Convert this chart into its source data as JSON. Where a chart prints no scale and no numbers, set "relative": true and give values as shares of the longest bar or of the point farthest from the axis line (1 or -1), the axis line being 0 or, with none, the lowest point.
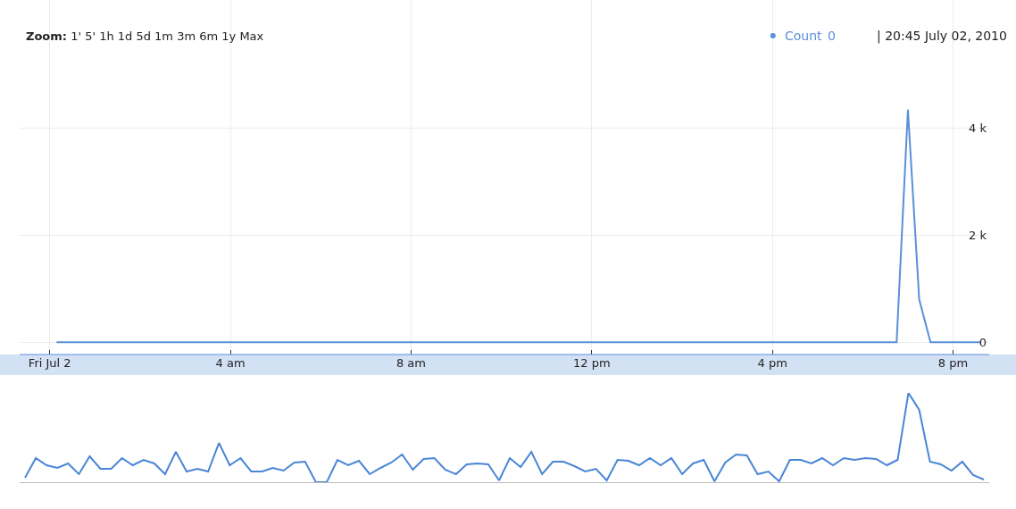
{
  "chart_data": [
    {
      "type": "line",
      "annotations": [
        "Zoom: 1' 5' 1h 1d 5d 1m 3m 6m 1y Max",
        "0",
        "| 20:45 July 02, 2010"
      ],
      "x": [
        "2010-07-02T00:09",
        "2010-07-02T18:45",
        "2010-07-02T19:00",
        "2010-07-02T19:15",
        "2010-07-02T19:30",
        "2010-07-02T20:36"
      ],
      "series": [
        {
          "name": "Count",
          "color": "#5b8fd9",
          "values": [
            0,
            0,
            4350,
            800,
            0,
            0
          ]
        }
      ],
      "xlim": [
        "2010-07-01T23:20",
        "2010-07-02T20:48"
      ],
      "xticks": [
        {
          "value": "2010-07-02T00:00",
          "label": "Fri Jul 2"
        },
        {
          "value": "2010-07-02T04:00",
          "label": "4 am"
        },
        {
          "value": "2010-07-02T08:00",
          "label": "8 am"
        },
        {
          "value": "2010-07-02T12:00",
          "label": "12 pm"
        },
        {
          "value": "2010-07-02T16:00",
          "label": "4 pm"
        },
        {
          "value": "2010-07-02T20:00",
          "label": "8 pm"
        }
      ],
      "ylim": [
        -230,
        6400
      ],
      "yticks": [
        0,
        {
          "value": 2000,
          "label": "2 k"
        },
        {
          "value": 4000,
          "label": "4 k"
        }
      ],
      "grid": true
    },
    {
      "type": "line",
      "relative": true,
      "categories": [
        null,
        null,
        null,
        null,
        null,
        null,
        null,
        null,
        null,
        null,
        null,
        null,
        null,
        null,
        null,
        null,
        null,
        null,
        null,
        null,
        null,
        null,
        null,
        null,
        null,
        null,
        null,
        null,
        null,
        null,
        null,
        null,
        null,
        null,
        null,
        null,
        null,
        null,
        null,
        null,
        null,
        null,
        null,
        null,
        null,
        null,
        null,
        null,
        null,
        null,
        null,
        null,
        null,
        null,
        null,
        null,
        null,
        null,
        null,
        null,
        null,
        null,
        null,
        null,
        null,
        null,
        null,
        null,
        null,
        null,
        null,
        null,
        null,
        null,
        null,
        null,
        null,
        null,
        null,
        null,
        null,
        null,
        null,
        null,
        null,
        null,
        null,
        null,
        null,
        null
      ],
      "series": [
        {
          "color": "#4a86d6",
          "values": [
            0.05,
            0.27,
            0.19,
            0.16,
            0.21,
            0.09,
            0.29,
            0.15,
            0.15,
            0.27,
            0.19,
            0.25,
            0.21,
            0.09,
            0.34,
            0.12,
            0.15,
            0.12,
            0.44,
            0.19,
            0.27,
            0.12,
            0.12,
            0.16,
            0.13,
            0.22,
            0.23,
            0,
            0,
            0.25,
            0.19,
            0.24,
            0.09,
            0.16,
            0.22,
            0.31,
            0.14,
            0.26,
            0.27,
            0.14,
            0.09,
            0.2,
            0.21,
            0.2,
            0.02,
            0.27,
            0.17,
            0.34,
            0.09,
            0.23,
            0.23,
            0.18,
            0.12,
            0.15,
            0.02,
            0.25,
            0.24,
            0.19,
            0.27,
            0.19,
            0.27,
            0.09,
            0.21,
            0.25,
            0.01,
            0.22,
            0.31,
            0.3,
            0.09,
            0.12,
            0.01,
            0.25,
            0.25,
            0.21,
            0.27,
            0.19,
            0.27,
            0.25,
            0.27,
            0.26,
            0.19,
            0.25,
            1,
            0.81,
            0.23,
            0.2,
            0.13,
            0.23,
            0.08,
            0.03
          ]
        }
      ]
    }
  ]
}
